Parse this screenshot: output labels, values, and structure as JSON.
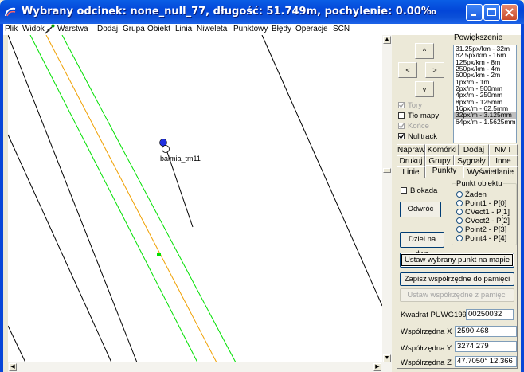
{
  "window": {
    "title": "Wybrany odcinek: none_null_77, długość: 51.749m, pochylenie: 0.00‰"
  },
  "menu": [
    "Plik",
    "Widok",
    "Warstwa",
    "Dodaj",
    "Grupa",
    "Obiekt",
    "Linia",
    "Niweleta",
    "Punktowy",
    "Błędy",
    "Operacje",
    "SCN"
  ],
  "canvas": {
    "point_label": "balmia_tm11"
  },
  "navigation": {
    "up": "^",
    "left": "<",
    "right": ">",
    "down": "v"
  },
  "zoom": {
    "label": "Powiększenie",
    "items": [
      "31.25px/km - 32m",
      "62.5px/km - 16m",
      "125px/km - 8m",
      "250px/km - 4m",
      "500px/km - 2m",
      "1px/m - 1m",
      "2px/m - 500mm",
      "4px/m - 250mm",
      "8px/m - 125mm",
      "16px/m - 62.5mm",
      "32px/m - 3.125mm",
      "64px/m - 1.5625mm"
    ],
    "selected": "32px/m - 3.125mm"
  },
  "checkboxes": {
    "tory": {
      "label": "Tory",
      "checked": true
    },
    "tlo": {
      "label": "Tło mapy",
      "checked": false
    },
    "konce": {
      "label": "Końce",
      "checked": true
    },
    "nulltrack": {
      "label": "Nulltrack",
      "checked": true
    }
  },
  "tabs": {
    "row1": [
      "Napraw",
      "Komórki",
      "Dodaj",
      "NMT"
    ],
    "row2": [
      "Drukuj",
      "Grupy",
      "Sygnały",
      "Inne"
    ],
    "row3": [
      "Linie",
      "Punkty",
      "Wyświetlanie"
    ],
    "active": "Punkty"
  },
  "punkty": {
    "blokada": "Blokada",
    "odwroc": "Odwróć",
    "dziel": "Dziel na dwa",
    "group_title": "Punkt obiektu",
    "radios": [
      "Żaden",
      "Point1 - P[0]",
      "CVect1 - P[1]",
      "CVect2 - P[2]",
      "Point2 - P[3]",
      "Point4 - P[4]"
    ],
    "set_point": "Ustaw wybrany punkt  na mapie",
    "save_coords": "Zapisz współrzędne do pamięci",
    "load_coords": "Ustaw współrzędne z pamięci",
    "puwg_label": "Kwadrat PUWG1992",
    "puwg_value": "00250032",
    "x_label": "Współrzędna X",
    "x_value": "2590.468",
    "y_label": "Współrzędna Y",
    "y_value": "3274.279",
    "z_label": "Współrzędna Z",
    "z_value": "47.7050° 12.366"
  },
  "colors": {
    "green_line": "#00e000",
    "orange_line": "#f0a000",
    "point_blue": "#2030e0"
  }
}
